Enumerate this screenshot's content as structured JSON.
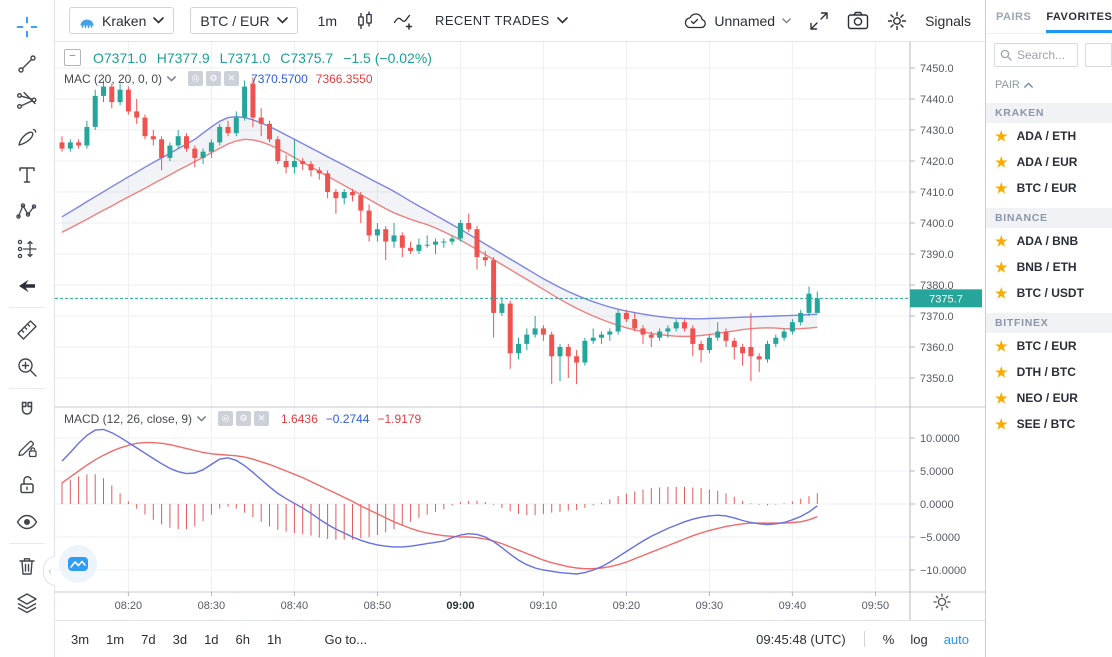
{
  "topbar": {
    "exchange": "Kraken",
    "pair": "BTC / EUR",
    "interval": "1m",
    "recent_trades": "RECENT TRADES",
    "layout_name": "Unnamed",
    "signals": "Signals",
    "icons": [
      "kraken-logo",
      "chevron-down",
      "candles",
      "compare-line-plus",
      "cloud-check",
      "fullscreen",
      "camera",
      "gear"
    ]
  },
  "legend": {
    "ohlc": {
      "o": "O7371.0",
      "h": "H7377.9",
      "l": "L7371.0",
      "c": "C7375.7",
      "change": "−1.5 (−0.02%)"
    },
    "mac": {
      "label": "MAC (20, 20, 0, 0)",
      "v1": "7370.5700",
      "v2": "7366.3550"
    },
    "macd": {
      "label": "MACD (12, 26, close, 9)",
      "v1": "1.6436",
      "v2": "−0.2744",
      "v3": "−1.9179"
    },
    "icon_names": [
      "collapse-box",
      "eye",
      "gear",
      "close"
    ]
  },
  "sidebar": {
    "tabs": {
      "pairs": "PAIRS",
      "favorites": "FAVORITES"
    },
    "search_placeholder": "Search...",
    "column": "PAIR",
    "groups": [
      {
        "name": "KRAKEN",
        "items": [
          "ADA / ETH",
          "ADA / EUR",
          "BTC / EUR"
        ]
      },
      {
        "name": "BINANCE",
        "items": [
          "ADA / BNB",
          "BNB / ETH",
          "BTC / USDT"
        ]
      },
      {
        "name": "BITFINEX",
        "items": [
          "BTC / EUR",
          "DTH / BTC",
          "NEO / EUR",
          "SEE / BTC"
        ]
      }
    ],
    "icons": [
      "star",
      "search"
    ]
  },
  "bottombar": {
    "ranges": [
      "3m",
      "1m",
      "7d",
      "3d",
      "1d",
      "6h",
      "1h"
    ],
    "goto": "Go to...",
    "clock": "09:45:48 (UTC)",
    "percent": "%",
    "log": "log",
    "auto": "auto"
  },
  "toolbar_icons": [
    "crosshair",
    "trend-line",
    "gann-fork",
    "brush",
    "text",
    "xabcd-pattern",
    "forecast",
    "arrow-left",
    "ruler",
    "zoom-in",
    "magnet",
    "drawing-lock",
    "lock-open",
    "eye",
    "trash",
    "layers"
  ],
  "colors": {
    "up": "#26a69a",
    "down": "#ef5350",
    "ma_upper": "#7c84e4",
    "ma_lower": "#ef8080",
    "channel_fill": "rgba(150,160,185,0.12)",
    "macd_line": "#6670e0",
    "signal_line": "#f06a6a",
    "histogram": "#e25a5a",
    "accent": "#2196f3",
    "price_line": "#26a69a",
    "grid": "#eceff3",
    "axis_text": "#555b66",
    "axis_line": "#b4b8c1",
    "divider": "#c6c9d1"
  },
  "chart_data": {
    "type": "candlestick",
    "exchange": "Kraken",
    "symbol": "BTC / EUR",
    "interval": "1m",
    "start_time": "08:12",
    "last_price": 7375.7,
    "last_price_label": "7375.7",
    "price_ticks": [
      {
        "value": 7450,
        "label": "7450.0"
      },
      {
        "value": 7440,
        "label": "7440.0"
      },
      {
        "value": 7430,
        "label": "7430.0"
      },
      {
        "value": 7420,
        "label": "7420.0"
      },
      {
        "value": 7410,
        "label": "7410.0"
      },
      {
        "value": 7400,
        "label": "7400.0"
      },
      {
        "value": 7390,
        "label": "7390.0"
      },
      {
        "value": 7380,
        "label": "7380.0"
      },
      {
        "value": 7370,
        "label": "7370.0"
      },
      {
        "value": 7360,
        "label": "7360.0"
      },
      {
        "value": 7350,
        "label": "7350.0"
      }
    ],
    "time_ticks": [
      {
        "label": "08:20",
        "m": 8,
        "bold": false
      },
      {
        "label": "08:30",
        "m": 18,
        "bold": false
      },
      {
        "label": "08:40",
        "m": 28,
        "bold": false
      },
      {
        "label": "08:50",
        "m": 38,
        "bold": false
      },
      {
        "label": "09:00",
        "m": 48,
        "bold": true
      },
      {
        "label": "09:10",
        "m": 58,
        "bold": false
      },
      {
        "label": "09:20",
        "m": 68,
        "bold": false
      },
      {
        "label": "09:30",
        "m": 78,
        "bold": false
      },
      {
        "label": "09:40",
        "m": 88,
        "bold": false
      },
      {
        "label": "09:50",
        "m": 98,
        "bold": false
      }
    ],
    "macd_ticks": [
      {
        "value": 10,
        "label": "10.0000"
      },
      {
        "value": 5,
        "label": "5.0000"
      },
      {
        "value": 0,
        "label": "0.0000"
      },
      {
        "value": -5,
        "label": "−5.0000"
      },
      {
        "value": -10,
        "label": "−10.0000"
      }
    ],
    "candles": [
      [
        7426,
        7428,
        7423,
        7424
      ],
      [
        7424,
        7427,
        7423,
        7426
      ],
      [
        7426,
        7427,
        7424,
        7425
      ],
      [
        7425,
        7433,
        7424,
        7431
      ],
      [
        7431,
        7443,
        7430,
        7441
      ],
      [
        7441,
        7446,
        7439,
        7444
      ],
      [
        7444,
        7445,
        7437,
        7439
      ],
      [
        7439,
        7445,
        7438,
        7443
      ],
      [
        7443,
        7444,
        7435,
        7436
      ],
      [
        7436,
        7440,
        7432,
        7434
      ],
      [
        7434,
        7435,
        7427,
        7428
      ],
      [
        7428,
        7430,
        7425,
        7427
      ],
      [
        7427,
        7428,
        7417,
        7421
      ],
      [
        7421,
        7426,
        7420,
        7425
      ],
      [
        7425,
        7430,
        7424,
        7428
      ],
      [
        7428,
        7429,
        7423,
        7424
      ],
      [
        7424,
        7425,
        7418,
        7421
      ],
      [
        7421,
        7424,
        7419,
        7423
      ],
      [
        7423,
        7427,
        7421,
        7426
      ],
      [
        7426,
        7432,
        7425,
        7431
      ],
      [
        7431,
        7433,
        7428,
        7429
      ],
      [
        7429,
        7436,
        7428,
        7434
      ],
      [
        7434,
        7446,
        7433,
        7444
      ],
      [
        7445,
        7447,
        7431,
        7434
      ],
      [
        7434,
        7437,
        7428,
        7432
      ],
      [
        7432,
        7433,
        7426,
        7427
      ],
      [
        7427,
        7428,
        7419,
        7420
      ],
      [
        7420,
        7422,
        7416,
        7418
      ],
      [
        7418,
        7427,
        7416,
        7420
      ],
      [
        7420,
        7421,
        7417,
        7419
      ],
      [
        7419,
        7420,
        7415,
        7417
      ],
      [
        7417,
        7418,
        7414,
        7416
      ],
      [
        7416,
        7417,
        7408,
        7410
      ],
      [
        7410,
        7411,
        7403,
        7408
      ],
      [
        7408,
        7411,
        7406,
        7410
      ],
      [
        7410,
        7411,
        7407,
        7409
      ],
      [
        7409,
        7410,
        7400,
        7404
      ],
      [
        7404,
        7406,
        7394,
        7396
      ],
      [
        7396,
        7400,
        7394,
        7398
      ],
      [
        7398,
        7399,
        7388,
        7394
      ],
      [
        7394,
        7400,
        7392,
        7396
      ],
      [
        7396,
        7397,
        7389,
        7392
      ],
      [
        7392,
        7394,
        7390,
        7391
      ],
      [
        7391,
        7395,
        7390,
        7393
      ],
      [
        7393,
        7396,
        7392,
        7393
      ],
      [
        7393,
        7395,
        7390,
        7394
      ],
      [
        7394,
        7395,
        7392,
        7394
      ],
      [
        7394,
        7396,
        7393,
        7395
      ],
      [
        7395,
        7401,
        7394,
        7400
      ],
      [
        7400,
        7403,
        7397,
        7398
      ],
      [
        7398,
        7399,
        7385,
        7389
      ],
      [
        7389,
        7391,
        7386,
        7388
      ],
      [
        7388,
        7389,
        7363,
        7371
      ],
      [
        7371,
        7376,
        7370,
        7374
      ],
      [
        7374,
        7375,
        7353,
        7358
      ],
      [
        7358,
        7363,
        7356,
        7361
      ],
      [
        7361,
        7366,
        7359,
        7364
      ],
      [
        7364,
        7370,
        7363,
        7366
      ],
      [
        7366,
        7367,
        7362,
        7364
      ],
      [
        7364,
        7365,
        7348,
        7357
      ],
      [
        7357,
        7361,
        7349,
        7360
      ],
      [
        7360,
        7361,
        7350,
        7357
      ],
      [
        7357,
        7359,
        7348,
        7355
      ],
      [
        7355,
        7363,
        7354,
        7362
      ],
      [
        7362,
        7366,
        7361,
        7363
      ],
      [
        7363,
        7365,
        7361,
        7364
      ],
      [
        7364,
        7366,
        7362,
        7365
      ],
      [
        7365,
        7372,
        7364,
        7371
      ],
      [
        7371,
        7372,
        7368,
        7369
      ],
      [
        7369,
        7371,
        7365,
        7366
      ],
      [
        7366,
        7367,
        7361,
        7364
      ],
      [
        7364,
        7365,
        7360,
        7363
      ],
      [
        7363,
        7366,
        7362,
        7365
      ],
      [
        7365,
        7367,
        7363,
        7366
      ],
      [
        7366,
        7369,
        7365,
        7368
      ],
      [
        7368,
        7369,
        7365,
        7366
      ],
      [
        7366,
        7367,
        7357,
        7361
      ],
      [
        7361,
        7362,
        7355,
        7359
      ],
      [
        7359,
        7364,
        7358,
        7363
      ],
      [
        7363,
        7368,
        7362,
        7365
      ],
      [
        7365,
        7366,
        7360,
        7362
      ],
      [
        7362,
        7363,
        7356,
        7360
      ],
      [
        7360,
        7361,
        7354,
        7358
      ],
      [
        7360,
        7371,
        7349,
        7357
      ],
      [
        7357,
        7358,
        7352,
        7356
      ],
      [
        7356,
        7362,
        7355,
        7361
      ],
      [
        7361,
        7364,
        7360,
        7363
      ],
      [
        7363,
        7366,
        7362,
        7365
      ],
      [
        7365,
        7369,
        7364,
        7368
      ],
      [
        7368,
        7372,
        7367,
        7371
      ],
      [
        7371,
        7379.5,
        7370,
        7377.2
      ],
      [
        7371,
        7377.9,
        7371,
        7375.7
      ]
    ],
    "ma_upper": [
      7402.0,
      7403.6,
      7405.2,
      7406.9,
      7408.5,
      7410.1,
      7411.7,
      7413.3,
      7414.9,
      7416.4,
      7418.0,
      7419.5,
      7421.0,
      7422.5,
      7424.0,
      7425.5,
      7427.0,
      7429.0,
      7431.0,
      7432.8,
      7434.0,
      7434.3,
      7434.0,
      7433.3,
      7432.3,
      7431.1,
      7429.8,
      7428.4,
      7427.0,
      7425.6,
      7424.2,
      7422.8,
      7421.4,
      7420.0,
      7418.6,
      7417.2,
      7415.8,
      7414.4,
      7413.0,
      7411.6,
      7410.2,
      7408.6,
      7407.0,
      7405.5,
      7404.0,
      7402.5,
      7401.0,
      7399.5,
      7398.0,
      7396.4,
      7394.8,
      7393.2,
      7391.6,
      7390.0,
      7388.4,
      7386.8,
      7385.2,
      7383.6,
      7382.0,
      7380.6,
      7379.2,
      7377.9,
      7376.7,
      7375.6,
      7374.6,
      7373.7,
      7372.9,
      7372.2,
      7371.6,
      7371.1,
      7370.6,
      7370.2,
      7369.8,
      7369.5,
      7369.3,
      7369.2,
      7369.1,
      7369.1,
      7369.2,
      7369.3,
      7369.4,
      7369.5,
      7369.6,
      7369.7,
      7369.8,
      7369.9,
      7370.0,
      7370.1,
      7370.2,
      7370.3,
      7370.45,
      7370.57
    ],
    "ma_lower": [
      7397.0,
      7398.4,
      7399.8,
      7401.2,
      7402.7,
      7404.1,
      7405.5,
      7407.0,
      7408.4,
      7409.8,
      7411.2,
      7412.7,
      7414.1,
      7415.5,
      7417.0,
      7418.4,
      7419.8,
      7421.2,
      7422.7,
      7424.1,
      7425.5,
      7426.5,
      7427.0,
      7426.8,
      7426.2,
      7425.2,
      7424.0,
      7422.6,
      7421.1,
      7419.6,
      7418.1,
      7416.6,
      7415.1,
      7413.6,
      7412.1,
      7410.6,
      7409.1,
      7407.6,
      7406.1,
      7404.6,
      7403.3,
      7402.2,
      7401.2,
      7400.3,
      7399.5,
      7398.4,
      7397.2,
      7395.9,
      7394.5,
      7393.0,
      7391.4,
      7389.8,
      7388.2,
      7386.6,
      7385.0,
      7383.4,
      7381.8,
      7380.2,
      7378.6,
      7377.0,
      7375.4,
      7373.9,
      7372.5,
      7371.2,
      7370.0,
      7368.9,
      7367.9,
      7367.0,
      7366.2,
      7365.5,
      7364.9,
      7364.4,
      7364.0,
      7363.7,
      7363.5,
      7363.4,
      7363.5,
      7363.7,
      7364.0,
      7364.4,
      7364.8,
      7365.2,
      7365.6,
      7365.9,
      7366.1,
      7366.2,
      7366.1,
      7365.9,
      7365.8,
      7365.9,
      7366.1,
      7366.36
    ],
    "macd": [
      6.5,
      7.8,
      9.2,
      10.4,
      11.2,
      11.3,
      10.8,
      10.1,
      9.3,
      8.5,
      7.7,
      6.9,
      6.1,
      5.4,
      4.9,
      4.6,
      4.7,
      5.2,
      6.0,
      6.8,
      7.0,
      6.6,
      5.8,
      4.8,
      3.7,
      2.6,
      1.6,
      0.8,
      0.1,
      -0.6,
      -1.4,
      -2.3,
      -3.1,
      -3.8,
      -4.4,
      -5.0,
      -5.5,
      -5.9,
      -6.2,
      -6.4,
      -6.5,
      -6.5,
      -6.4,
      -6.2,
      -6.0,
      -5.8,
      -5.6,
      -5.1,
      -4.7,
      -4.5,
      -4.6,
      -5.0,
      -5.7,
      -6.6,
      -7.6,
      -8.5,
      -9.2,
      -9.7,
      -10.0,
      -10.2,
      -10.4,
      -10.5,
      -10.6,
      -10.4,
      -10.0,
      -9.5,
      -8.8,
      -8.0,
      -7.2,
      -6.4,
      -5.6,
      -4.9,
      -4.3,
      -3.7,
      -3.2,
      -2.7,
      -2.3,
      -2.0,
      -1.8,
      -1.7,
      -1.8,
      -2.1,
      -2.5,
      -2.8,
      -3.0,
      -3.1,
      -3.0,
      -2.8,
      -2.4,
      -1.9,
      -1.2,
      -0.2744
    ],
    "signal": [
      3.2,
      4.1,
      5.0,
      5.9,
      6.7,
      7.4,
      8.0,
      8.5,
      8.9,
      9.2,
      9.3,
      9.3,
      9.2,
      9.0,
      8.7,
      8.4,
      8.1,
      7.8,
      7.6,
      7.5,
      7.4,
      7.3,
      7.1,
      6.8,
      6.4,
      6.0,
      5.5,
      5.0,
      4.5,
      4.0,
      3.4,
      2.8,
      2.2,
      1.6,
      1.0,
      0.4,
      -0.3,
      -0.9,
      -1.5,
      -2.1,
      -2.7,
      -3.2,
      -3.7,
      -4.1,
      -4.4,
      -4.6,
      -4.8,
      -4.9,
      -5.0,
      -5.0,
      -5.1,
      -5.3,
      -5.6,
      -6.0,
      -6.5,
      -7.0,
      -7.5,
      -8.0,
      -8.5,
      -8.9,
      -9.2,
      -9.5,
      -9.7,
      -9.8,
      -9.8,
      -9.7,
      -9.5,
      -9.2,
      -8.8,
      -8.3,
      -7.8,
      -7.3,
      -6.8,
      -6.3,
      -5.8,
      -5.3,
      -4.8,
      -4.4,
      -4.0,
      -3.7,
      -3.4,
      -3.2,
      -3.0,
      -2.9,
      -2.9,
      -2.9,
      -2.9,
      -2.9,
      -2.8,
      -2.7,
      -2.4,
      -1.9179
    ]
  }
}
